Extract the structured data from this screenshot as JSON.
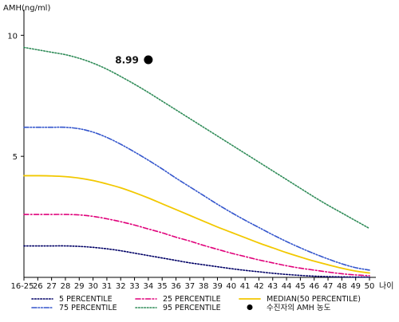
{
  "chart_data": {
    "type": "line",
    "ylabel": "AMH(ng/ml)",
    "xlabel": "나이",
    "x": [
      "16-25",
      "26",
      "27",
      "28",
      "29",
      "30",
      "31",
      "32",
      "33",
      "34",
      "35",
      "36",
      "37",
      "38",
      "39",
      "40",
      "41",
      "42",
      "43",
      "44",
      "45",
      "46",
      "47",
      "48",
      "49",
      "50"
    ],
    "y_ticks": [
      5,
      10
    ],
    "y_range": [
      0,
      10.8
    ],
    "grid": false,
    "legend_position": "bottom",
    "series": [
      {
        "name": "5 PERCENTILE",
        "color": "#000066",
        "style": "dotted",
        "values": [
          1.3,
          1.3,
          1.3,
          1.3,
          1.28,
          1.24,
          1.18,
          1.1,
          1.0,
          0.9,
          0.8,
          0.7,
          0.6,
          0.52,
          0.44,
          0.36,
          0.29,
          0.23,
          0.17,
          0.12,
          0.08,
          0.05,
          0.03,
          0.02,
          0.01,
          0.01
        ]
      },
      {
        "name": "25 PERCENTILE",
        "color": "#e0007a",
        "style": "dash-dot",
        "values": [
          2.6,
          2.6,
          2.6,
          2.6,
          2.58,
          2.52,
          2.42,
          2.3,
          2.16,
          2.0,
          1.84,
          1.66,
          1.5,
          1.32,
          1.16,
          1.0,
          0.86,
          0.72,
          0.6,
          0.48,
          0.38,
          0.3,
          0.22,
          0.15,
          0.1,
          0.07
        ]
      },
      {
        "name": "MEDIAN(50 PERCENTILE)",
        "color": "#f2c800",
        "style": "solid",
        "values": [
          4.2,
          4.2,
          4.19,
          4.16,
          4.1,
          4.0,
          3.86,
          3.7,
          3.5,
          3.28,
          3.04,
          2.8,
          2.56,
          2.32,
          2.08,
          1.86,
          1.64,
          1.42,
          1.22,
          1.02,
          0.84,
          0.67,
          0.52,
          0.38,
          0.26,
          0.18
        ]
      },
      {
        "name": "75 PERCENTILE",
        "color": "#3355cc",
        "style": "dash-dot-dot",
        "values": [
          6.2,
          6.2,
          6.2,
          6.2,
          6.14,
          6.0,
          5.78,
          5.5,
          5.18,
          4.84,
          4.48,
          4.1,
          3.74,
          3.38,
          3.02,
          2.68,
          2.36,
          2.06,
          1.76,
          1.48,
          1.22,
          0.98,
          0.76,
          0.56,
          0.4,
          0.3
        ]
      },
      {
        "name": "95 PERCENTILE",
        "color": "#2e8b57",
        "style": "dotted",
        "values": [
          9.5,
          9.4,
          9.3,
          9.2,
          9.05,
          8.85,
          8.6,
          8.3,
          7.98,
          7.64,
          7.28,
          6.92,
          6.56,
          6.2,
          5.84,
          5.48,
          5.12,
          4.76,
          4.4,
          4.04,
          3.68,
          3.32,
          2.98,
          2.66,
          2.34,
          2.02
        ]
      }
    ],
    "point": {
      "name": "수진자의 AMH 농도",
      "x": "34",
      "y": 8.99,
      "label": "8.99",
      "color": "#000000"
    },
    "legend_rows": [
      [
        "5 PERCENTILE",
        "25 PERCENTILE",
        "MEDIAN(50 PERCENTILE)"
      ],
      [
        "75 PERCENTILE",
        "95 PERCENTILE",
        "수진자의 AMH 농도"
      ]
    ]
  }
}
